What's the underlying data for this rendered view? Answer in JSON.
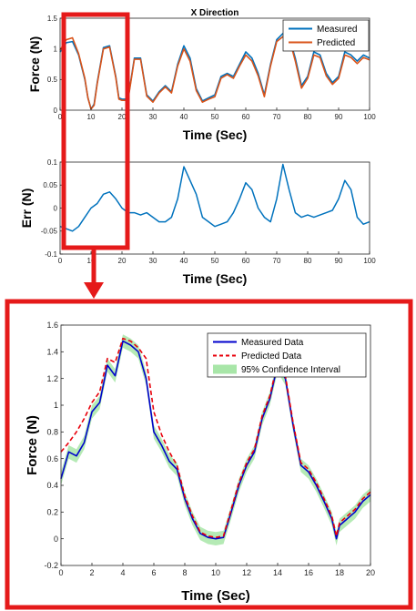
{
  "colors": {
    "measured_top": "#0072BD",
    "predicted_top": "#D95319",
    "measured_zoom": "#0000CC",
    "predicted_zoom": "#E8000B",
    "confidence": "#A8E6A8",
    "highlight": "#E51A1A"
  },
  "chart_data": [
    {
      "id": "force",
      "type": "line",
      "title": "X Direction",
      "xlabel": "Time (Sec)",
      "ylabel": "Force (N)",
      "xlim": [
        0,
        100
      ],
      "ylim": [
        0,
        1.5
      ],
      "xticks": [
        0,
        10,
        20,
        30,
        40,
        50,
        60,
        70,
        80,
        90,
        100
      ],
      "yticks": [
        0,
        0.5,
        1,
        1.5
      ],
      "legend_position": "top-right",
      "grid": false,
      "x": [
        0,
        2,
        4,
        6,
        8,
        9,
        10,
        11,
        12,
        14,
        16,
        18,
        19,
        20,
        21,
        22,
        24,
        26,
        28,
        30,
        32,
        34,
        36,
        38,
        40,
        42,
        44,
        46,
        48,
        50,
        52,
        54,
        56,
        58,
        60,
        62,
        64,
        66,
        68,
        70,
        72,
        74,
        76,
        78,
        80,
        82,
        84,
        86,
        88,
        90,
        92,
        94,
        96,
        98,
        100
      ],
      "series": [
        {
          "name": "Measured",
          "values": [
            0.95,
            1.1,
            1.12,
            0.9,
            0.5,
            0.2,
            0.02,
            0.1,
            0.45,
            1.02,
            1.05,
            0.55,
            0.2,
            0.18,
            0.18,
            0.2,
            0.85,
            0.85,
            0.25,
            0.15,
            0.3,
            0.4,
            0.3,
            0.75,
            1.05,
            0.85,
            0.35,
            0.15,
            0.2,
            0.25,
            0.55,
            0.6,
            0.55,
            0.75,
            0.95,
            0.85,
            0.6,
            0.25,
            0.75,
            1.15,
            1.25,
            1.2,
            0.85,
            0.4,
            0.55,
            0.95,
            0.9,
            0.6,
            0.45,
            0.55,
            0.95,
            0.9,
            0.8,
            0.9,
            0.85
          ]
        },
        {
          "name": "Predicted",
          "values": [
            0.98,
            1.15,
            1.18,
            0.92,
            0.52,
            0.2,
            0.02,
            0.08,
            0.43,
            1.0,
            1.03,
            0.53,
            0.18,
            0.16,
            0.16,
            0.18,
            0.83,
            0.83,
            0.23,
            0.13,
            0.28,
            0.38,
            0.28,
            0.72,
            1.0,
            0.8,
            0.32,
            0.13,
            0.18,
            0.22,
            0.52,
            0.58,
            0.52,
            0.72,
            0.9,
            0.8,
            0.56,
            0.22,
            0.72,
            1.12,
            1.2,
            1.18,
            0.8,
            0.36,
            0.52,
            0.9,
            0.86,
            0.56,
            0.42,
            0.52,
            0.9,
            0.86,
            0.76,
            0.86,
            0.82
          ]
        }
      ]
    },
    {
      "id": "err",
      "type": "line",
      "xlabel": "Time (Sec)",
      "ylabel": "Err (N)",
      "xlim": [
        0,
        100
      ],
      "ylim": [
        -0.1,
        0.1
      ],
      "xticks": [
        0,
        10,
        20,
        30,
        40,
        50,
        60,
        70,
        80,
        90,
        100
      ],
      "yticks": [
        -0.1,
        -0.05,
        0,
        0.05,
        0.1
      ],
      "grid": false,
      "x": [
        0,
        2,
        4,
        6,
        8,
        10,
        12,
        14,
        16,
        18,
        20,
        22,
        24,
        26,
        28,
        30,
        32,
        34,
        36,
        38,
        40,
        42,
        44,
        46,
        48,
        50,
        52,
        54,
        56,
        58,
        60,
        62,
        64,
        66,
        68,
        70,
        72,
        74,
        76,
        78,
        80,
        82,
        84,
        86,
        88,
        90,
        92,
        94,
        96,
        98,
        100
      ],
      "series": [
        {
          "name": "Err",
          "values": [
            -0.04,
            -0.045,
            -0.05,
            -0.04,
            -0.02,
            0.0,
            0.01,
            0.03,
            0.035,
            0.02,
            0.0,
            -0.01,
            -0.01,
            -0.015,
            -0.01,
            -0.02,
            -0.03,
            -0.03,
            -0.02,
            0.02,
            0.09,
            0.06,
            0.03,
            -0.02,
            -0.03,
            -0.04,
            -0.035,
            -0.03,
            -0.01,
            0.02,
            0.055,
            0.04,
            0.0,
            -0.02,
            -0.03,
            0.02,
            0.095,
            0.04,
            -0.01,
            -0.02,
            -0.015,
            -0.02,
            -0.015,
            -0.01,
            -0.005,
            0.02,
            0.06,
            0.04,
            -0.02,
            -0.035,
            -0.03
          ]
        }
      ]
    },
    {
      "id": "zoom",
      "type": "line",
      "xlabel": "Time (Sec)",
      "ylabel": "Force (N)",
      "xlim": [
        0,
        20
      ],
      "ylim": [
        -0.2,
        1.6
      ],
      "xticks": [
        0,
        2,
        4,
        6,
        8,
        10,
        12,
        14,
        16,
        18,
        20
      ],
      "yticks": [
        -0.2,
        0,
        0.2,
        0.4,
        0.6,
        0.8,
        1,
        1.2,
        1.4,
        1.6
      ],
      "legend_position": "top-right",
      "grid": false,
      "x": [
        0,
        0.5,
        1,
        1.5,
        2,
        2.5,
        3,
        3.5,
        4,
        4.5,
        5,
        5.5,
        6,
        6.5,
        7,
        7.5,
        8,
        8.5,
        9,
        9.5,
        10,
        10.5,
        11,
        11.5,
        12,
        12.5,
        13,
        13.5,
        14,
        14.5,
        15,
        15.5,
        16,
        16.5,
        17,
        17.5,
        17.8,
        18,
        18.5,
        19,
        19.5,
        20
      ],
      "series": [
        {
          "name": "Measured Data",
          "values": [
            0.45,
            0.65,
            0.62,
            0.72,
            0.95,
            1.02,
            1.3,
            1.22,
            1.48,
            1.45,
            1.4,
            1.2,
            0.8,
            0.7,
            0.58,
            0.52,
            0.3,
            0.15,
            0.04,
            0.01,
            0.0,
            0.01,
            0.2,
            0.4,
            0.55,
            0.65,
            0.9,
            1.05,
            1.3,
            1.2,
            0.85,
            0.55,
            0.5,
            0.4,
            0.28,
            0.15,
            0.0,
            0.1,
            0.15,
            0.2,
            0.28,
            0.33
          ]
        },
        {
          "name": "Predicted Data",
          "values": [
            0.65,
            0.72,
            0.8,
            0.9,
            1.02,
            1.1,
            1.35,
            1.32,
            1.5,
            1.48,
            1.43,
            1.35,
            0.95,
            0.78,
            0.65,
            0.55,
            0.32,
            0.17,
            0.05,
            0.02,
            0.01,
            0.02,
            0.22,
            0.42,
            0.57,
            0.67,
            0.92,
            1.07,
            1.32,
            1.22,
            0.87,
            0.57,
            0.52,
            0.42,
            0.3,
            0.17,
            0.02,
            0.12,
            0.17,
            0.22,
            0.3,
            0.35
          ]
        }
      ],
      "confidence_label": "95% Confidence Interval",
      "confidence_halfwidth": 0.05
    }
  ]
}
